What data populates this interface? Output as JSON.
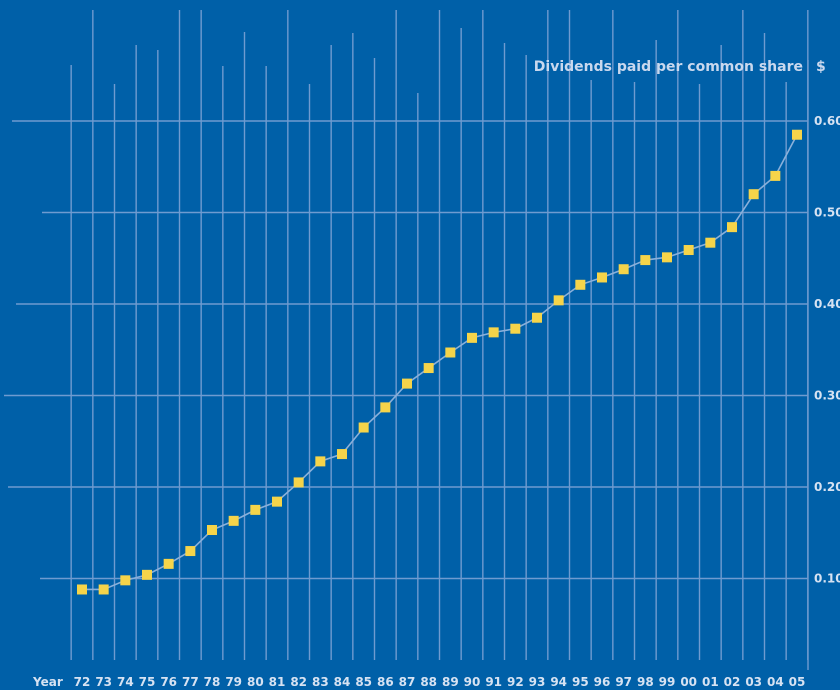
{
  "chart_data": {
    "type": "line",
    "title": "Dividends paid per common share",
    "unit": "$",
    "xlabel": "Year",
    "x": [
      "72",
      "73",
      "74",
      "75",
      "76",
      "77",
      "78",
      "79",
      "80",
      "81",
      "82",
      "83",
      "84",
      "85",
      "86",
      "87",
      "88",
      "89",
      "90",
      "91",
      "92",
      "93",
      "94",
      "95",
      "96",
      "97",
      "98",
      "99",
      "00",
      "01",
      "02",
      "03",
      "04",
      "05"
    ],
    "values": [
      0.088,
      0.088,
      0.098,
      0.104,
      0.116,
      0.13,
      0.153,
      0.163,
      0.175,
      0.184,
      0.205,
      0.228,
      0.236,
      0.265,
      0.287,
      0.313,
      0.33,
      0.347,
      0.363,
      0.369,
      0.373,
      0.385,
      0.404,
      0.421,
      0.429,
      0.438,
      0.448,
      0.451,
      0.459,
      0.467,
      0.484,
      0.52,
      0.54,
      0.585
    ],
    "yticks": [
      "0.10",
      "0.20",
      "0.30",
      "0.40",
      "0.50",
      "0.60"
    ],
    "ylim": [
      0,
      0.65
    ],
    "grid": true,
    "marker_color": "#f5d44a",
    "line_color": "#8ab0da",
    "grid_color": "#6f9bd0",
    "background_color": "#0060a8"
  }
}
